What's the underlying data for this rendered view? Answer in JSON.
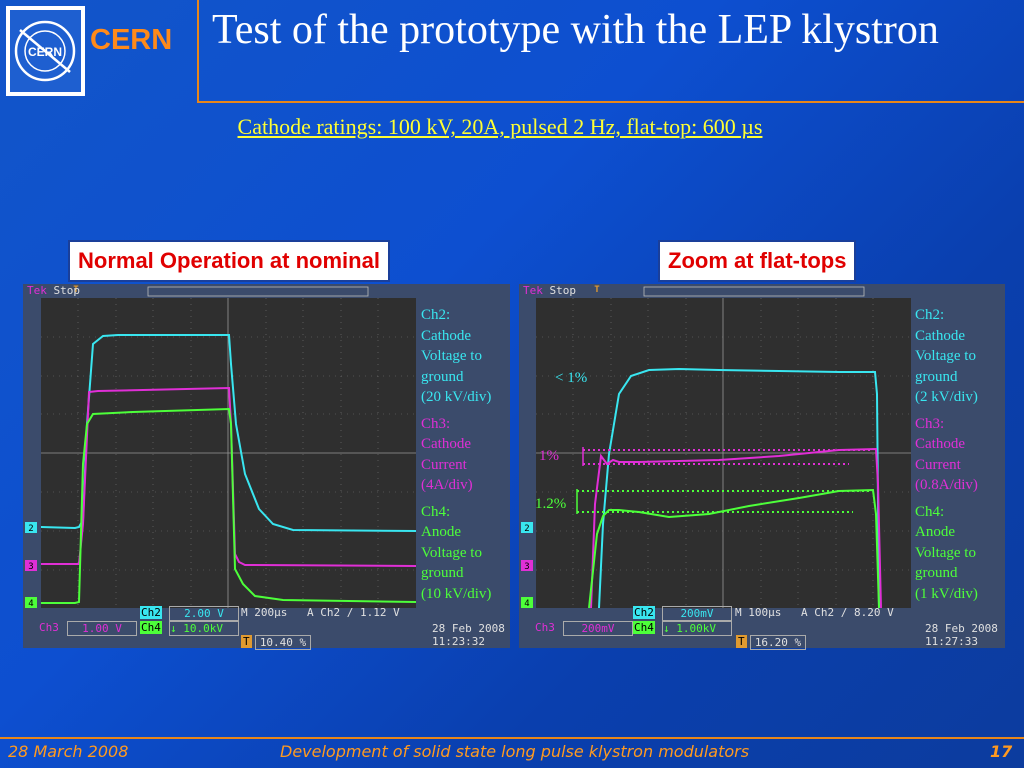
{
  "header": {
    "logo_text": "CERN",
    "org_name": "CERN",
    "title": "Test of the prototype with the LEP klystron"
  },
  "subtitle": "Cathode ratings: 100 kV, 20A, pulsed 2 Hz, flat-top: 600 µs",
  "panels": [
    {
      "label": "Normal Operation at nominal",
      "scope": {
        "status": "Stop",
        "trigger_marker": "T",
        "ch2_settings": "2.00 V",
        "timebase": "M 200µs",
        "trigger": "A  Ch2  ∕  1.12 V",
        "ch3_settings": "1.00 V",
        "ch4_settings": "↓ 10.0kV",
        "trigger_pos": "10.40 %",
        "date": "28 Feb  2008",
        "time": "11:23:32"
      },
      "annotations": {
        "ch2": [
          "Ch2:",
          "Cathode",
          "Voltage to",
          "ground",
          "(20 kV/div)"
        ],
        "ch3": [
          "Ch3:",
          "Cathode",
          "Current",
          "(4A/div)"
        ],
        "ch4": [
          "Ch4:",
          "Anode",
          "Voltage to",
          "ground",
          "(10 kV/div)"
        ]
      }
    },
    {
      "label": "Zoom at flat-tops",
      "scope": {
        "status": "Stop",
        "trigger_marker": "T",
        "ch2_settings": "200mV",
        "timebase": "M 100µs",
        "trigger": "A  Ch2  ∕  8.20 V",
        "ch3_settings": "200mV",
        "ch4_settings": "↓ 1.00kV",
        "trigger_pos": "16.20 %",
        "date": "28 Feb  2008",
        "time": "11:27:33",
        "marks": {
          "ch2_droop": "< 1%",
          "ch3_droop": "1%",
          "ch4_droop": "1.2%"
        }
      },
      "annotations": {
        "ch2": [
          "Ch2:",
          "Cathode",
          "Voltage to",
          "ground",
          "(2 kV/div)"
        ],
        "ch3": [
          "Ch3:",
          "Cathode",
          "Current",
          "(0.8A/div)"
        ],
        "ch4": [
          "Ch4:",
          "Anode",
          "Voltage to",
          "ground",
          "(1 kV/div)"
        ]
      }
    }
  ],
  "channel_labels": {
    "ch2": "Ch2",
    "ch3": "Ch3",
    "ch4": "Ch4",
    "m2": "2",
    "m3": "3",
    "m4": "4"
  },
  "colors": {
    "ch2": "#39e6f0",
    "ch3": "#e02fd6",
    "ch4": "#4dff3a",
    "accent": "#e8861a"
  },
  "footer": {
    "date": "28 March 2008",
    "title": "Development of solid state long pulse klystron modulators",
    "page": "17"
  }
}
